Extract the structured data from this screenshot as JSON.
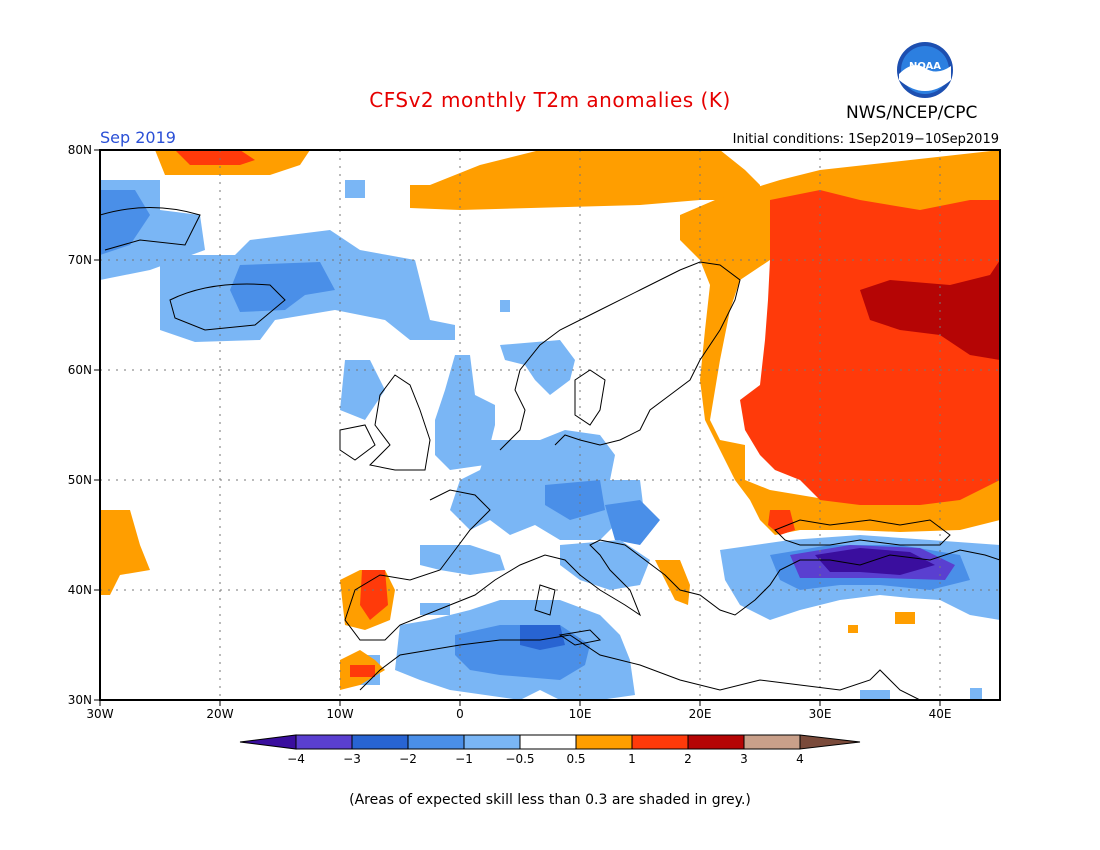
{
  "header": {
    "title": "CFSv2 monthly T2m anomalies (K)",
    "agency": "NWS/NCEP/CPC",
    "logo_text": "NOAA",
    "month_label": "Sep 2019",
    "initial_conditions": "Initial conditions: 1Sep2019−10Sep2019"
  },
  "map": {
    "lat_labels": [
      "80N",
      "70N",
      "60N",
      "50N",
      "40N",
      "30N"
    ],
    "lon_labels": [
      "30W",
      "20W",
      "10W",
      "0",
      "10E",
      "20E",
      "30E",
      "40E"
    ],
    "region": "Europe",
    "lon_range": [
      -30,
      45
    ],
    "lat_range": [
      30,
      80
    ]
  },
  "colorbar": {
    "tick_labels": [
      "−4",
      "−3",
      "−2",
      "−1",
      "−0.5",
      "0.5",
      "1",
      "2",
      "3",
      "4"
    ],
    "colors": [
      "#3a0e9e",
      "#5a3fd0",
      "#2864d2",
      "#4a8fe8",
      "#7ab6f5",
      "#ffffff",
      "#ff9e00",
      "#ff3a0a",
      "#b50505",
      "#c9a08a",
      "#7a4a3a"
    ]
  },
  "footnote": "(Areas of expected skill less than 0.3 are shaded in grey.)",
  "anomaly_legend_colors": {
    "light_blue": "#7ab6f5",
    "mid_blue": "#4a8fe8",
    "blue": "#2864d2",
    "purple": "#3a0e9e",
    "orange": "#ff9e00",
    "red": "#ff3a0a",
    "dark_red": "#b50505"
  }
}
